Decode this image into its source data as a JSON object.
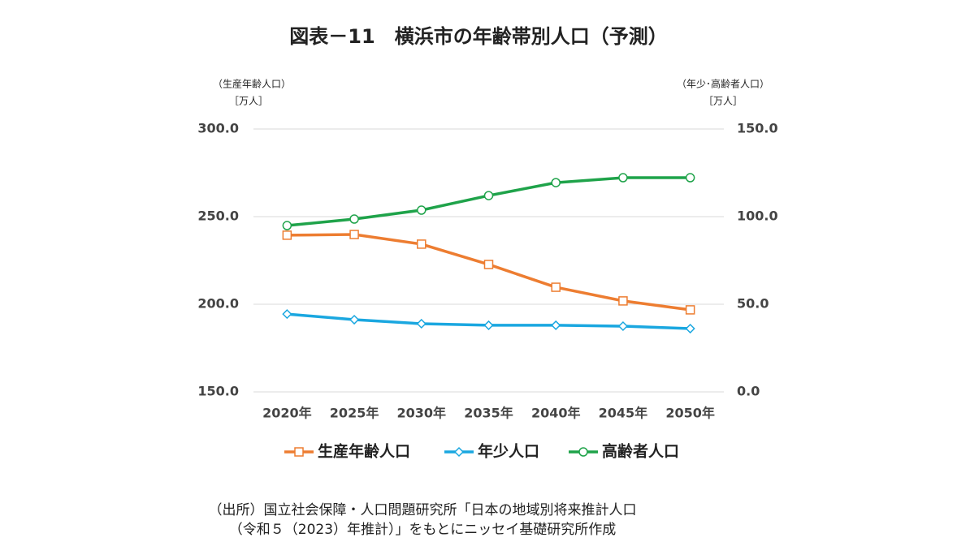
{
  "chart_data": {
    "type": "line",
    "title": "図表－11　横浜市の年齢帯別人口（予測）",
    "y_label": "（生産年齢人口）",
    "y_unit": "［万人］",
    "y2_label": "（年少･高齢者人口）",
    "y2_unit": "［万人］",
    "source": [
      "（出所）国立社会保障・人口問題研究所「日本の地域別将来推計人口",
      "（令和５（2023）年推計）」をもとにニッセイ基礎研究所作成"
    ],
    "categories": [
      "2020年",
      "2025年",
      "2030年",
      "2035年",
      "2040年",
      "2045年",
      "2050年"
    ],
    "ylim": [
      150,
      300
    ],
    "yticks": [
      {
        "value": 150,
        "label": "150.0"
      },
      {
        "value": 200,
        "label": "200.0"
      },
      {
        "value": 250,
        "label": "250.0"
      },
      {
        "value": 300,
        "label": "300.0"
      }
    ],
    "y2lim": [
      0,
      150
    ],
    "y2ticks": [
      {
        "value": 0,
        "label": "0.0"
      },
      {
        "value": 50,
        "label": "50.0"
      },
      {
        "value": 100,
        "label": "100.0"
      },
      {
        "value": 150,
        "label": "150.0"
      }
    ],
    "grid": true,
    "series": [
      {
        "name": "生産年齢人口",
        "color": "#ed7d31",
        "marker": "square",
        "values": [
          239.4,
          239.8,
          234.3,
          222.7,
          209.7,
          201.9,
          196.8
        ]
      },
      {
        "name": "年少人口",
        "color": "#1aa7e0",
        "marker": "diamond",
        "axis": "y2",
        "values": [
          44.4,
          41.2,
          38.9,
          38.0,
          38.0,
          37.5,
          36.1
        ]
      },
      {
        "name": "高齢者人口",
        "color": "#1fa34a",
        "marker": "circle",
        "axis": "y2",
        "values": [
          94.9,
          98.6,
          103.7,
          112.0,
          119.4,
          122.2,
          122.2
        ]
      }
    ]
  }
}
